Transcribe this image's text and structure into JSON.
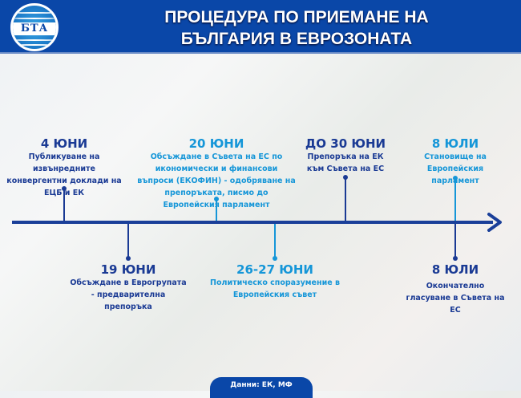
{
  "header": {
    "logo_text": "БТА",
    "title_line1": "ПРОЦЕДУРА ПО ПРИЕМАНЕ НА",
    "title_line2": "БЪЛГАРИЯ В ЕВРОЗОНАТА"
  },
  "colors": {
    "header": "#0a47a8",
    "dark_blue": "#1a3a94",
    "light_blue": "#1596d8"
  },
  "events_top": [
    {
      "date": "4 ЮНИ",
      "text": "Публикуване на извънредните конвергентни доклади на ЕЦБ и ЕК"
    },
    {
      "date": "20 ЮНИ",
      "text": "Обсъждане в Съвета на ЕС по икономически и финансови въпроси (ЕКОФИН) - одобряване на препоръката, писмо до Европейския парламент"
    },
    {
      "date": "ДО 30 ЮНИ",
      "text": "Препоръка на ЕК към Съвета на ЕС"
    },
    {
      "date": "8 ЮЛИ",
      "text": "Становище на Европейския парламент"
    }
  ],
  "events_bottom": [
    {
      "date": "19 ЮНИ",
      "text": "Обсъждане в Еврогрупата - предварителна препоръка"
    },
    {
      "date": "26-27 ЮНИ",
      "text": "Политическо споразумение в Европейския съвет"
    },
    {
      "date": "8 ЮЛИ",
      "text": "Окончателно гласуване в Съвета на ЕС"
    }
  ],
  "footer": {
    "source": "Данни: ЕК, МФ"
  }
}
